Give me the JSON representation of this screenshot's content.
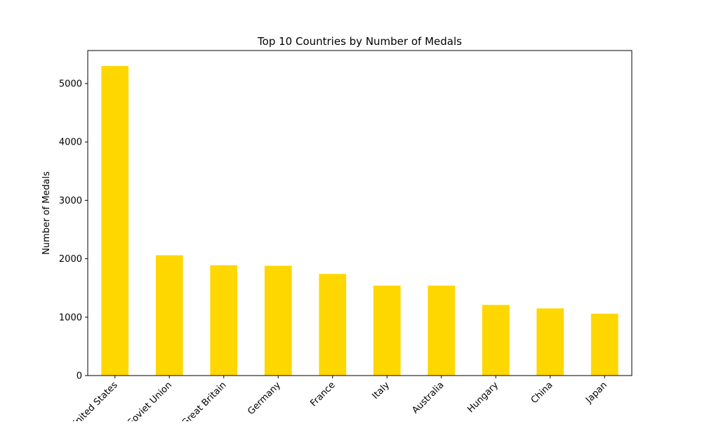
{
  "chart_data": {
    "type": "bar",
    "title": "Top 10 Countries by Number of Medals",
    "xlabel": "",
    "ylabel": "Number of Medals",
    "categories": [
      "United States",
      "Soviet Union",
      "Great Britain",
      "Germany",
      "France",
      "Italy",
      "Australia",
      "Hungary",
      "China",
      "Japan"
    ],
    "values": [
      5300,
      2060,
      1890,
      1880,
      1740,
      1540,
      1540,
      1210,
      1150,
      1060
    ],
    "ylim": [
      0,
      5565
    ],
    "yticks": [
      0,
      1000,
      2000,
      3000,
      4000,
      5000
    ],
    "bar_color": "#FFD700",
    "grid": false,
    "legend": false
  }
}
